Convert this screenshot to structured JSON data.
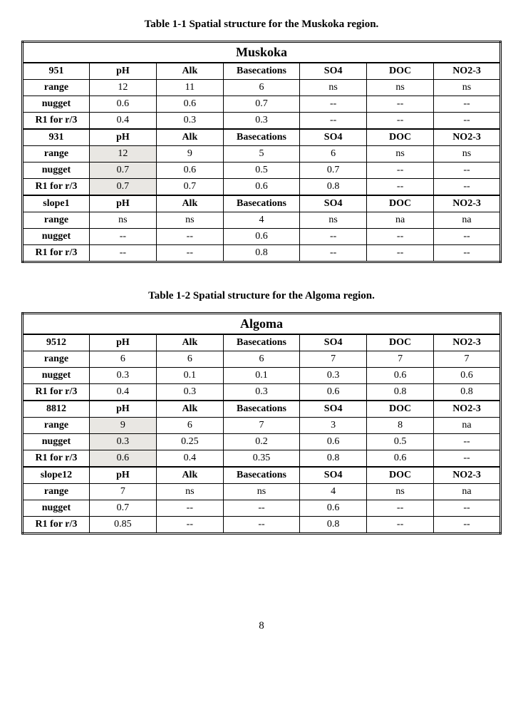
{
  "page_number": "8",
  "table1": {
    "caption": "Table 1-1   Spatial structure for the Muskoka region.",
    "title": "Muskoka",
    "col_widths": [
      "14%",
      "14%",
      "14%",
      "16%",
      "14%",
      "14%",
      "14%"
    ],
    "sections": [
      {
        "header": [
          "951",
          "pH",
          "Alk",
          "Basecations",
          "SO4",
          "DOC",
          "NO2-3"
        ],
        "header_class": "first",
        "rows": [
          {
            "label": "range",
            "cells": [
              "12",
              "11",
              "6",
              "ns",
              "ns",
              "ns"
            ],
            "shaded": []
          },
          {
            "label": "nugget",
            "cells": [
              "0.6",
              "0.6",
              "0.7",
              "--",
              "--",
              "--"
            ],
            "shaded": []
          },
          {
            "label": "R1 for r/3",
            "cells": [
              "0.4",
              "0.3",
              "0.3",
              "--",
              "--",
              "--"
            ],
            "shaded": []
          }
        ]
      },
      {
        "header": [
          "931",
          "pH",
          "Alk",
          "Basecations",
          "SO4",
          "DOC",
          "NO2-3"
        ],
        "rows": [
          {
            "label": "range",
            "cells": [
              "12",
              "9",
              "5",
              "6",
              "ns",
              "ns"
            ],
            "shaded": [
              0
            ]
          },
          {
            "label": "nugget",
            "cells": [
              "0.7",
              "0.6",
              "0.5",
              "0.7",
              "--",
              "--"
            ],
            "shaded": [
              0
            ]
          },
          {
            "label": "R1 for r/3",
            "cells": [
              "0.7",
              "0.7",
              "0.6",
              "0.8",
              "--",
              "--"
            ],
            "shaded": [
              0
            ]
          }
        ]
      },
      {
        "header": [
          "slope1",
          "pH",
          "Alk",
          "Basecations",
          "SO4",
          "DOC",
          "NO2-3"
        ],
        "rows": [
          {
            "label": "range",
            "cells": [
              "ns",
              "ns",
              "4",
              "ns",
              "na",
              "na"
            ],
            "shaded": []
          },
          {
            "label": "nugget",
            "cells": [
              "--",
              "--",
              "0.6",
              "--",
              "--",
              "--"
            ],
            "shaded": []
          },
          {
            "label": "R1 for r/3",
            "cells": [
              "--",
              "--",
              "0.8",
              "--",
              "--",
              "--"
            ],
            "shaded": [],
            "last": true
          }
        ]
      }
    ]
  },
  "table2": {
    "caption": "Table 1-2   Spatial structure for the Algoma region.",
    "title": "Algoma",
    "col_widths": [
      "14%",
      "14%",
      "14%",
      "16%",
      "14%",
      "14%",
      "14%"
    ],
    "sections": [
      {
        "header": [
          "9512",
          "pH",
          "Alk",
          "Basecations",
          "SO4",
          "DOC",
          "NO2-3"
        ],
        "header_class": "first",
        "rows": [
          {
            "label": "range",
            "cells": [
              "6",
              "6",
              "6",
              "7",
              "7",
              "7"
            ],
            "shaded": []
          },
          {
            "label": "nugget",
            "cells": [
              "0.3",
              "0.1",
              "0.1",
              "0.3",
              "0.6",
              "0.6"
            ],
            "shaded": []
          },
          {
            "label": "R1 for r/3",
            "cells": [
              "0.4",
              "0.3",
              "0.3",
              "0.6",
              "0.8",
              "0.8"
            ],
            "shaded": []
          }
        ]
      },
      {
        "header": [
          "8812",
          "pH",
          "Alk",
          "Basecations",
          "SO4",
          "DOC",
          "NO2-3"
        ],
        "rows": [
          {
            "label": "range",
            "cells": [
              "9",
              "6",
              "7",
              "3",
              "8",
              "na"
            ],
            "shaded": [
              0
            ]
          },
          {
            "label": "nugget",
            "cells": [
              "0.3",
              "0.25",
              "0.2",
              "0.6",
              "0.5",
              "--"
            ],
            "shaded": [
              0
            ]
          },
          {
            "label": "R1 for r/3",
            "cells": [
              "0.6",
              "0.4",
              "0.35",
              "0.8",
              "0.6",
              "--"
            ],
            "shaded": [
              0
            ]
          }
        ]
      },
      {
        "header": [
          "slope12",
          "pH",
          "Alk",
          "Basecations",
          "SO4",
          "DOC",
          "NO2-3"
        ],
        "rows": [
          {
            "label": "range",
            "cells": [
              "7",
              "ns",
              "ns",
              "4",
              "ns",
              "na"
            ],
            "shaded": []
          },
          {
            "label": "nugget",
            "cells": [
              "0.7",
              "--",
              "--",
              "0.6",
              "--",
              "--"
            ],
            "shaded": []
          },
          {
            "label": "R1 for r/3",
            "cells": [
              "0.85",
              "--",
              "--",
              "0.8",
              "--",
              "--"
            ],
            "shaded": [],
            "last": true
          }
        ]
      }
    ]
  }
}
